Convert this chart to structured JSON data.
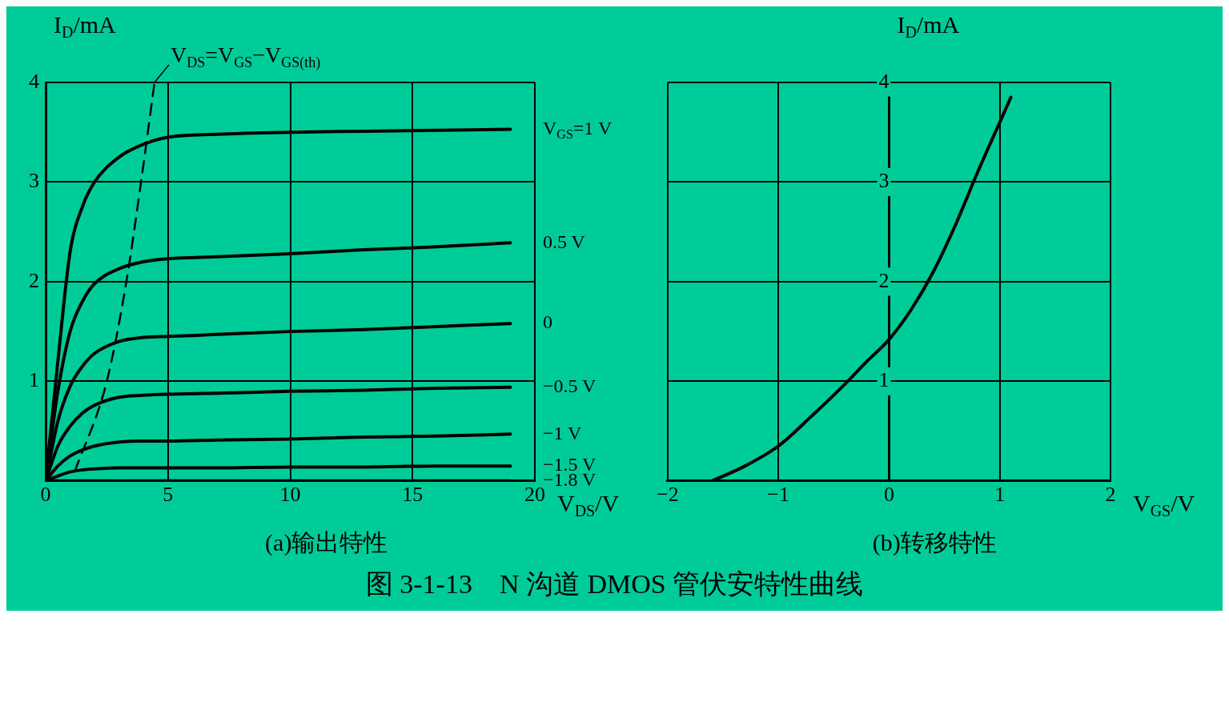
{
  "chart_data": [
    {
      "type": "line",
      "title": "(a)输出特性",
      "xlabel": "V$_{DS}$/V",
      "ylabel": "I$_{D}$/mA",
      "x": [
        0,
        0.5,
        1,
        1.5,
        2,
        3,
        4,
        5,
        7,
        10,
        13,
        16,
        19
      ],
      "series": [
        {
          "name": "V$_{GS}$=1 V",
          "color": "#000000",
          "values": [
            0,
            1.2,
            2.3,
            2.75,
            3.0,
            3.25,
            3.38,
            3.45,
            3.48,
            3.5,
            3.51,
            3.52,
            3.53
          ]
        },
        {
          "name": "0.5 V",
          "color": "#000000",
          "values": [
            0,
            0.9,
            1.5,
            1.8,
            1.98,
            2.13,
            2.2,
            2.23,
            2.25,
            2.28,
            2.32,
            2.35,
            2.39
          ]
        },
        {
          "name": "0",
          "color": "#000000",
          "values": [
            0,
            0.6,
            0.95,
            1.15,
            1.28,
            1.4,
            1.44,
            1.45,
            1.47,
            1.5,
            1.52,
            1.55,
            1.58
          ]
        },
        {
          "name": "−0.5 V",
          "color": "#000000",
          "values": [
            0,
            0.35,
            0.55,
            0.68,
            0.76,
            0.84,
            0.86,
            0.87,
            0.88,
            0.9,
            0.91,
            0.93,
            0.94
          ]
        },
        {
          "name": "−1 V",
          "color": "#000000",
          "values": [
            0,
            0.15,
            0.25,
            0.31,
            0.35,
            0.39,
            0.4,
            0.4,
            0.41,
            0.42,
            0.44,
            0.45,
            0.47
          ]
        },
        {
          "name": "−1.5 V",
          "color": "#000000",
          "values": [
            0,
            0.05,
            0.09,
            0.11,
            0.12,
            0.13,
            0.13,
            0.13,
            0.13,
            0.14,
            0.14,
            0.15,
            0.15
          ]
        },
        {
          "name": "−1.8 V",
          "color": "#000000",
          "values": [
            0,
            0,
            0,
            0,
            0,
            0,
            0,
            0,
            0,
            0,
            0,
            0,
            0
          ]
        },
        {
          "type": "line",
          "color": "#000000",
          "line_style": "dashed",
          "x": [
            1.2,
            2.5,
            3.3,
            3.9,
            4.45
          ],
          "values": [
            0.1,
            1,
            2,
            3,
            4
          ]
        }
      ],
      "xlim": [
        0,
        20
      ],
      "xticks": [
        0,
        5,
        10,
        15,
        20
      ],
      "ylim": [
        0,
        4
      ],
      "yticks": [
        1,
        2,
        3,
        4
      ],
      "grid": true,
      "marker": "none",
      "annotations": [
        {
          "text": "V$_{DS}$=V$_{GS}$−V$_{GS(th)}$",
          "x": 4.45,
          "y": 4
        },
        "图 3-1-13　N 沟道 DMOS 管伏安特性曲线"
      ]
    },
    {
      "type": "line",
      "title": "(b)转移特性",
      "xlabel": "V$_{GS}$/V",
      "ylabel": "I$_{D}$/mA",
      "x": [
        -1.6,
        -1.3,
        -1,
        -0.7,
        -0.4,
        -0.2,
        0,
        0.2,
        0.4,
        0.6,
        0.8,
        1.0,
        1.1
      ],
      "series": [
        {
          "color": "#000000",
          "values": [
            0,
            0.15,
            0.35,
            0.65,
            0.97,
            1.2,
            1.42,
            1.72,
            2.1,
            2.57,
            3.1,
            3.6,
            3.85
          ]
        }
      ],
      "xlim": [
        -2,
        2
      ],
      "xticks": [
        -2,
        -1,
        0,
        1,
        2
      ],
      "ylim": [
        0,
        4
      ],
      "yticks": [
        1,
        2,
        3,
        4
      ],
      "grid": true,
      "marker": "none"
    }
  ]
}
